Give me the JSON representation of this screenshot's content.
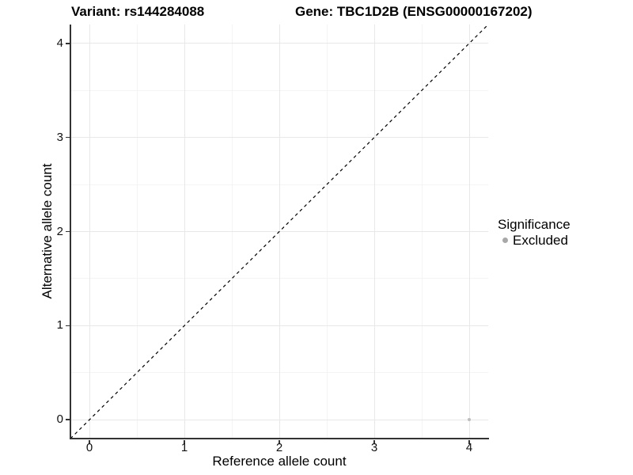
{
  "chart_data": {
    "type": "scatter",
    "title_left": "Variant: rs144284088",
    "title_right": "Gene: TBC1D2B (ENSG00000167202)",
    "xlabel": "Reference allele count",
    "ylabel": "Alternative allele count",
    "xlim": [
      -0.2,
      4.2
    ],
    "ylim": [
      -0.2,
      4.2
    ],
    "x_ticks": [
      0,
      1,
      2,
      3,
      4
    ],
    "y_ticks": [
      0,
      1,
      2,
      3,
      4
    ],
    "x_minor": [
      0.5,
      1.5,
      2.5,
      3.5
    ],
    "y_minor": [
      0.5,
      1.5,
      2.5,
      3.5
    ],
    "grid": "on",
    "identity_line": {
      "style": "dashed",
      "from": -0.2,
      "to": 4.2,
      "color": "#000000"
    },
    "points": [
      {
        "x": 4,
        "y": 0,
        "series": "Excluded",
        "color": "#bdbdbd",
        "radius": 2
      }
    ],
    "legend": {
      "position": "right",
      "title": "Significance",
      "entries": [
        {
          "label": "Excluded",
          "color": "#a8a8a8"
        }
      ]
    },
    "colors": {
      "axis_line": "#333333",
      "grid_major": "#e8e8e8",
      "grid_minor": "#f4f4f4",
      "text": "#000000"
    }
  }
}
